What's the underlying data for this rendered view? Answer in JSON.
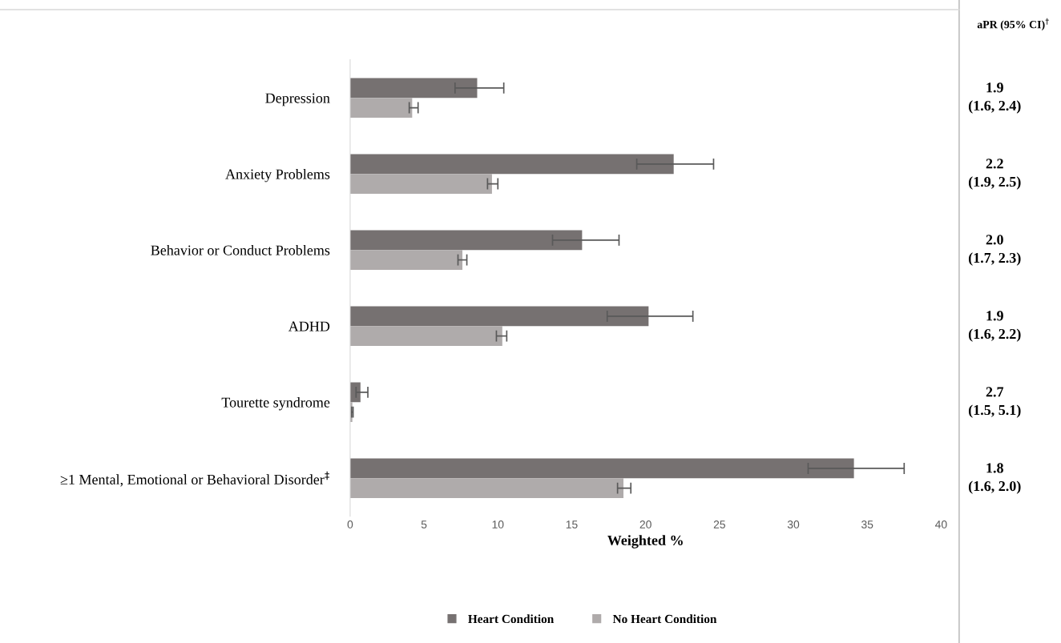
{
  "chart_data": {
    "type": "bar",
    "orientation": "horizontal",
    "xlabel": "Weighted %",
    "categories": [
      "Depression",
      "Anxiety Problems",
      "Behavior or Conduct Problems",
      "ADHD",
      "Tourette syndrome",
      "≥1 Mental, Emotional or Behavioral Disorder$^{‡}$"
    ],
    "series": [
      {
        "name": "Heart Condition",
        "color": "#767171",
        "values": [
          8.6,
          21.9,
          15.7,
          20.2,
          0.7,
          34.1
        ],
        "errors": [
          [
            7.1,
            10.4
          ],
          [
            19.4,
            24.6
          ],
          [
            13.7,
            18.2
          ],
          [
            17.4,
            23.2
          ],
          [
            0.4,
            1.2
          ],
          [
            31.0,
            37.5
          ]
        ]
      },
      {
        "name": "No Heart Condition",
        "color": "#afabab",
        "values": [
          4.2,
          9.6,
          7.6,
          10.3,
          0.15,
          18.5
        ],
        "errors": [
          [
            4.0,
            4.6
          ],
          [
            9.3,
            10.0
          ],
          [
            7.3,
            7.9
          ],
          [
            9.9,
            10.6
          ],
          [
            0.1,
            0.2
          ],
          [
            18.1,
            19.0
          ]
        ]
      }
    ],
    "xlim": [
      0,
      40
    ],
    "xticks": [
      0,
      5,
      10,
      15,
      20,
      25,
      30,
      35,
      40
    ],
    "grid": false,
    "legend": "bottom",
    "annotations": [
      "aPR (95% CI)$^{†}$",
      "1.9\n(1.6, 2.4)",
      "2.2\n(1.9, 2.5)",
      "2.0\n(1.7, 2.3)",
      "1.9\n(1.6, 2.2)",
      "2.7\n(1.5, 5.1)",
      "1.8\n(1.6, 2.0)"
    ]
  }
}
